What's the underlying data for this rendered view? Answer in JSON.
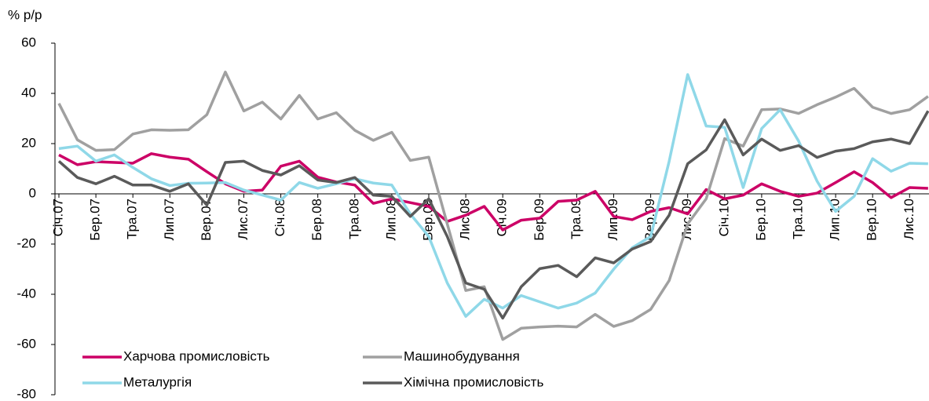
{
  "chart_data": {
    "type": "line",
    "y_label": "% р/р",
    "categories": [
      "Січ.07",
      null,
      "Бер.07",
      null,
      "Тра.07",
      null,
      "Лип.07",
      null,
      "Вер.07",
      null,
      "Лис.07",
      null,
      "Січ.08",
      null,
      "Бер.08",
      null,
      "Тра.08",
      null,
      "Лип.08",
      null,
      "Вер.08",
      null,
      "Лис.08",
      null,
      "Січ.09",
      null,
      "Бер.09",
      null,
      "Тра.09",
      null,
      "Лип.09",
      null,
      "Вер.09",
      null,
      "Лис.09",
      null,
      "Січ.10",
      null,
      "Бер.10",
      null,
      "Тра.10",
      null,
      "Лип.10",
      null,
      "Вер.10",
      null,
      "Лис.10",
      null
    ],
    "ylim": [
      -80,
      60
    ],
    "yticks": [
      -80,
      -60,
      -40,
      -20,
      0,
      20,
      40,
      60
    ],
    "series": [
      {
        "name": "Харчова промисловість",
        "color": "#cc0066",
        "values": [
          15.5,
          11.6,
          12.8,
          12.5,
          12.2,
          16,
          14.6,
          13.8,
          8.8,
          4,
          1,
          1.5,
          11,
          13,
          6.6,
          4.7,
          3.5,
          -3.8,
          -2,
          -3.5,
          -5,
          -11,
          -8.5,
          -5,
          -14.4,
          -10.5,
          -9.7,
          -3,
          -2.5,
          1,
          -9,
          -10.3,
          -7,
          -5.5,
          -8,
          1.7,
          -2,
          -0.5,
          4,
          1,
          -1,
          0.3,
          4.5,
          8.8,
          4.5,
          -1.5,
          2.5,
          2.2
        ]
      },
      {
        "name": "Машинобудування",
        "color": "#a0a0a0",
        "values": [
          36,
          21.5,
          17.3,
          17.6,
          23.8,
          25.5,
          25.3,
          25.5,
          31.5,
          48.5,
          33,
          36.5,
          29.8,
          39.2,
          29.8,
          32.3,
          25.3,
          21.3,
          24.5,
          13.3,
          14.6,
          -12,
          -38.5,
          -37,
          -58,
          -53.5,
          -53,
          -52.7,
          -53,
          -48,
          -52.8,
          -50.5,
          -46,
          -34.5,
          -12,
          -2,
          22,
          19,
          33.5,
          33.8,
          32,
          35.5,
          38.5,
          42,
          34.5,
          32,
          33.5,
          38.8
        ]
      },
      {
        "name": "Металургія",
        "color": "#8fd8e8",
        "values": [
          18,
          19,
          13,
          15.5,
          10.5,
          6,
          3.3,
          4.2,
          4.3,
          4.5,
          1.5,
          -0.5,
          -2.5,
          4.5,
          2.2,
          4,
          6,
          4.3,
          3.5,
          -8,
          -17,
          -35.5,
          -48.8,
          -42,
          -45.5,
          -40.5,
          -43,
          -45.5,
          -43.5,
          -39.5,
          -30,
          -21.5,
          -17,
          13,
          47.5,
          27,
          26.5,
          2.5,
          26,
          33.5,
          21,
          5,
          -7,
          -1,
          14,
          9,
          12.2,
          12
        ]
      },
      {
        "name": "Хімічна промисловість",
        "color": "#5a5a5a",
        "values": [
          13,
          6.5,
          4,
          7,
          3.5,
          3.5,
          1,
          4,
          -4.5,
          12.5,
          13,
          9.3,
          7.5,
          11.2,
          5.5,
          4.5,
          6.5,
          -0.5,
          -1,
          -9,
          -2,
          -17,
          -35.5,
          -38,
          -49.5,
          -37,
          -29.8,
          -28.5,
          -33,
          -25.5,
          -27.5,
          -22,
          -19,
          -8.5,
          12,
          17.5,
          29.5,
          15.5,
          21.8,
          17.3,
          19.2,
          14.5,
          17,
          18,
          20.7,
          21.8,
          20,
          33
        ]
      }
    ]
  }
}
